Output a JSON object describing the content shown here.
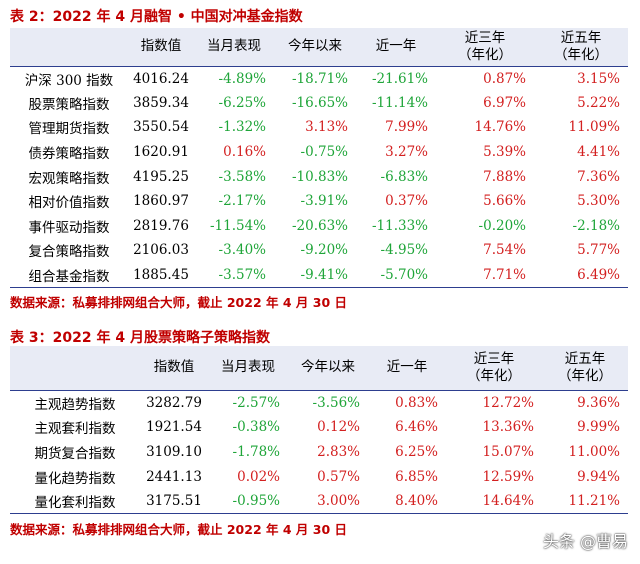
{
  "table1": {
    "title": "表 2：2022 年 4 月融智 • 中国对冲基金指数",
    "headers": [
      "",
      "指数值",
      "当月表现",
      "今年以来",
      "近一年",
      "近三年\n（年化）",
      "近五年\n（年化）"
    ],
    "rows": [
      [
        "沪深 300 指数",
        "4016.24",
        "-4.89%",
        "-18.71%",
        "-21.61%",
        "0.87%",
        "3.15%"
      ],
      [
        "股票策略指数",
        "3859.34",
        "-6.25%",
        "-16.65%",
        "-11.14%",
        "6.97%",
        "5.22%"
      ],
      [
        "管理期货指数",
        "3550.54",
        "-1.32%",
        "3.13%",
        "7.99%",
        "14.76%",
        "11.09%"
      ],
      [
        "债券策略指数",
        "1620.91",
        "0.16%",
        "-0.75%",
        "3.27%",
        "5.39%",
        "4.41%"
      ],
      [
        "宏观策略指数",
        "4195.25",
        "-3.58%",
        "-10.83%",
        "-6.83%",
        "7.88%",
        "7.36%"
      ],
      [
        "相对价值指数",
        "1860.97",
        "-2.17%",
        "-3.91%",
        "0.37%",
        "5.66%",
        "5.30%"
      ],
      [
        "事件驱动指数",
        "2819.76",
        "-11.54%",
        "-20.63%",
        "-11.33%",
        "-0.20%",
        "-2.18%"
      ],
      [
        "复合策略指数",
        "2106.03",
        "-3.40%",
        "-9.20%",
        "-4.95%",
        "7.54%",
        "5.77%"
      ],
      [
        "组合基金指数",
        "1885.45",
        "-3.57%",
        "-9.41%",
        "-5.70%",
        "7.71%",
        "6.49%"
      ]
    ],
    "source": "数据来源：私募排排网组合大师，截止 2022 年 4 月 30 日"
  },
  "table2": {
    "title": "表 3：2022 年 4 月股票策略子策略指数",
    "headers": [
      "",
      "指数值",
      "当月表现",
      "今年以来",
      "近一年",
      "近三年\n（年化）",
      "近五年\n（年化）"
    ],
    "rows": [
      [
        "主观趋势指数",
        "3282.79",
        "-2.57%",
        "-3.56%",
        "0.83%",
        "12.72%",
        "9.36%"
      ],
      [
        "主观套利指数",
        "1921.54",
        "-0.38%",
        "0.12%",
        "6.46%",
        "13.36%",
        "9.99%"
      ],
      [
        "期货复合指数",
        "3109.10",
        "-1.78%",
        "2.83%",
        "6.25%",
        "15.07%",
        "11.00%"
      ],
      [
        "量化趋势指数",
        "2441.13",
        "0.02%",
        "0.57%",
        "6.85%",
        "12.59%",
        "9.94%"
      ],
      [
        "量化套利指数",
        "3175.51",
        "-0.95%",
        "3.00%",
        "8.40%",
        "14.64%",
        "11.21%"
      ]
    ],
    "source": "数据来源：私募排排网组合大师，截止 2022 年 4 月 30 日"
  },
  "colors": {
    "title": "#c00000",
    "positive": "#d32020",
    "negative": "#1fa539",
    "header_bg": "#e8ebf5",
    "rule": "#2d3e8f"
  },
  "watermark": "头条 @曹易"
}
